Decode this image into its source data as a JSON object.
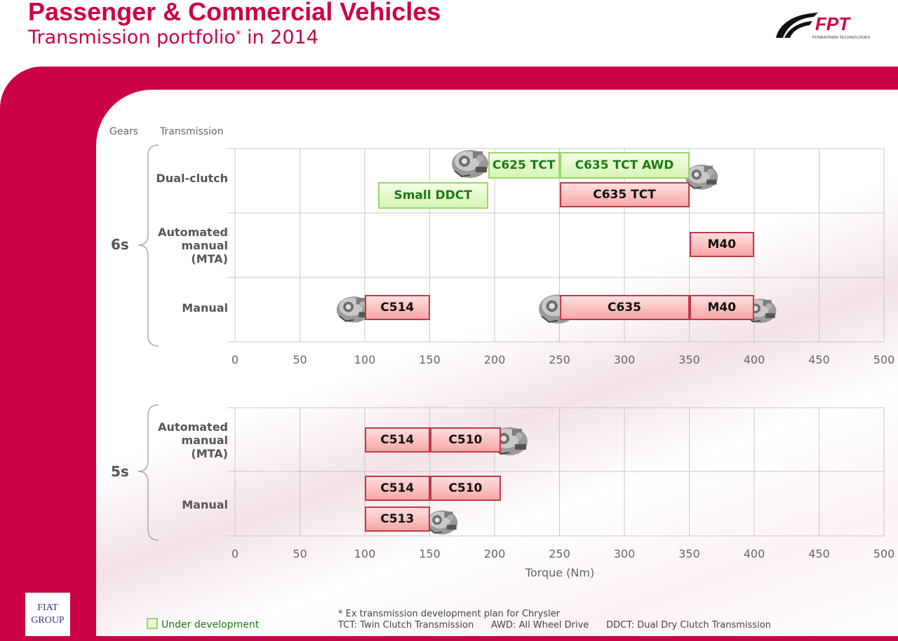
{
  "header": {
    "title": "Passenger & Commercial Vehicles",
    "subtitle": "Transmission portfolio",
    "subtitle_mark": "*",
    "subtitle_year": " in 2014"
  },
  "logos": {
    "fpt": "FPT",
    "fpt_tagline": "POWERTRAIN TECHNOLOGIES",
    "fiat_line1": "FIAT",
    "fiat_line2": "GROUP"
  },
  "column_headers": {
    "gears": "Gears",
    "transmission": "Transmission"
  },
  "gear_groups": {
    "six": "6s",
    "five": "5s"
  },
  "row_labels": {
    "dual_clutch": "Dual-clutch",
    "mta_line1": "Automated",
    "mta_line2": "manual",
    "mta_line3": "(MTA)",
    "manual": "Manual"
  },
  "chart_data": {
    "type": "range-bar",
    "xlabel": "Torque (Nm)",
    "xlim": [
      0,
      500
    ],
    "xticks": [
      "0",
      "50",
      "100",
      "150",
      "200",
      "250",
      "300",
      "350",
      "400",
      "450",
      "500"
    ],
    "bars": [
      {
        "label": "C625 TCT",
        "gears": "6s",
        "row": "Dual-clutch",
        "from": 195,
        "to": 250,
        "status": "development"
      },
      {
        "label": "C635 TCT AWD",
        "gears": "6s",
        "row": "Dual-clutch",
        "from": 250,
        "to": 350,
        "status": "development"
      },
      {
        "label": "Small DDCT",
        "gears": "6s",
        "row": "Dual-clutch",
        "from": 110,
        "to": 195,
        "status": "development"
      },
      {
        "label": "C635 TCT",
        "gears": "6s",
        "row": "Dual-clutch",
        "from": 250,
        "to": 350,
        "status": "production"
      },
      {
        "label": "M40",
        "gears": "6s",
        "row": "Automated manual (MTA)",
        "from": 350,
        "to": 400,
        "status": "production"
      },
      {
        "label": "C514",
        "gears": "6s",
        "row": "Manual",
        "from": 100,
        "to": 150,
        "status": "production"
      },
      {
        "label": "C635",
        "gears": "6s",
        "row": "Manual",
        "from": 250,
        "to": 350,
        "status": "production"
      },
      {
        "label": "M40",
        "gears": "6s",
        "row": "Manual",
        "from": 350,
        "to": 400,
        "status": "production"
      },
      {
        "label": "C514",
        "gears": "5s",
        "row": "Automated manual (MTA)",
        "from": 100,
        "to": 150,
        "status": "production"
      },
      {
        "label": "C510",
        "gears": "5s",
        "row": "Automated manual (MTA)",
        "from": 150,
        "to": 205,
        "status": "production"
      },
      {
        "label": "C514",
        "gears": "5s",
        "row": "Manual",
        "from": 100,
        "to": 150,
        "status": "production"
      },
      {
        "label": "C510",
        "gears": "5s",
        "row": "Manual",
        "from": 150,
        "to": 205,
        "status": "production"
      },
      {
        "label": "C513",
        "gears": "5s",
        "row": "Manual",
        "from": 100,
        "to": 150,
        "status": "production"
      }
    ]
  },
  "legend": {
    "under_development": "Under development",
    "colors": {
      "development": "#d6f3b4",
      "production": "#f7a7a7",
      "brand": "#cc0044"
    }
  },
  "footnotes": {
    "line1": "* Ex transmission development plan for Chrysler",
    "line2": "TCT: Twin Clutch Transmission      AWD: All Wheel Drive      DDCT: Dual Dry Clutch Transmission"
  },
  "icons": [
    "gearbox-image",
    "fpt-logo",
    "fiat-group-logo"
  ]
}
